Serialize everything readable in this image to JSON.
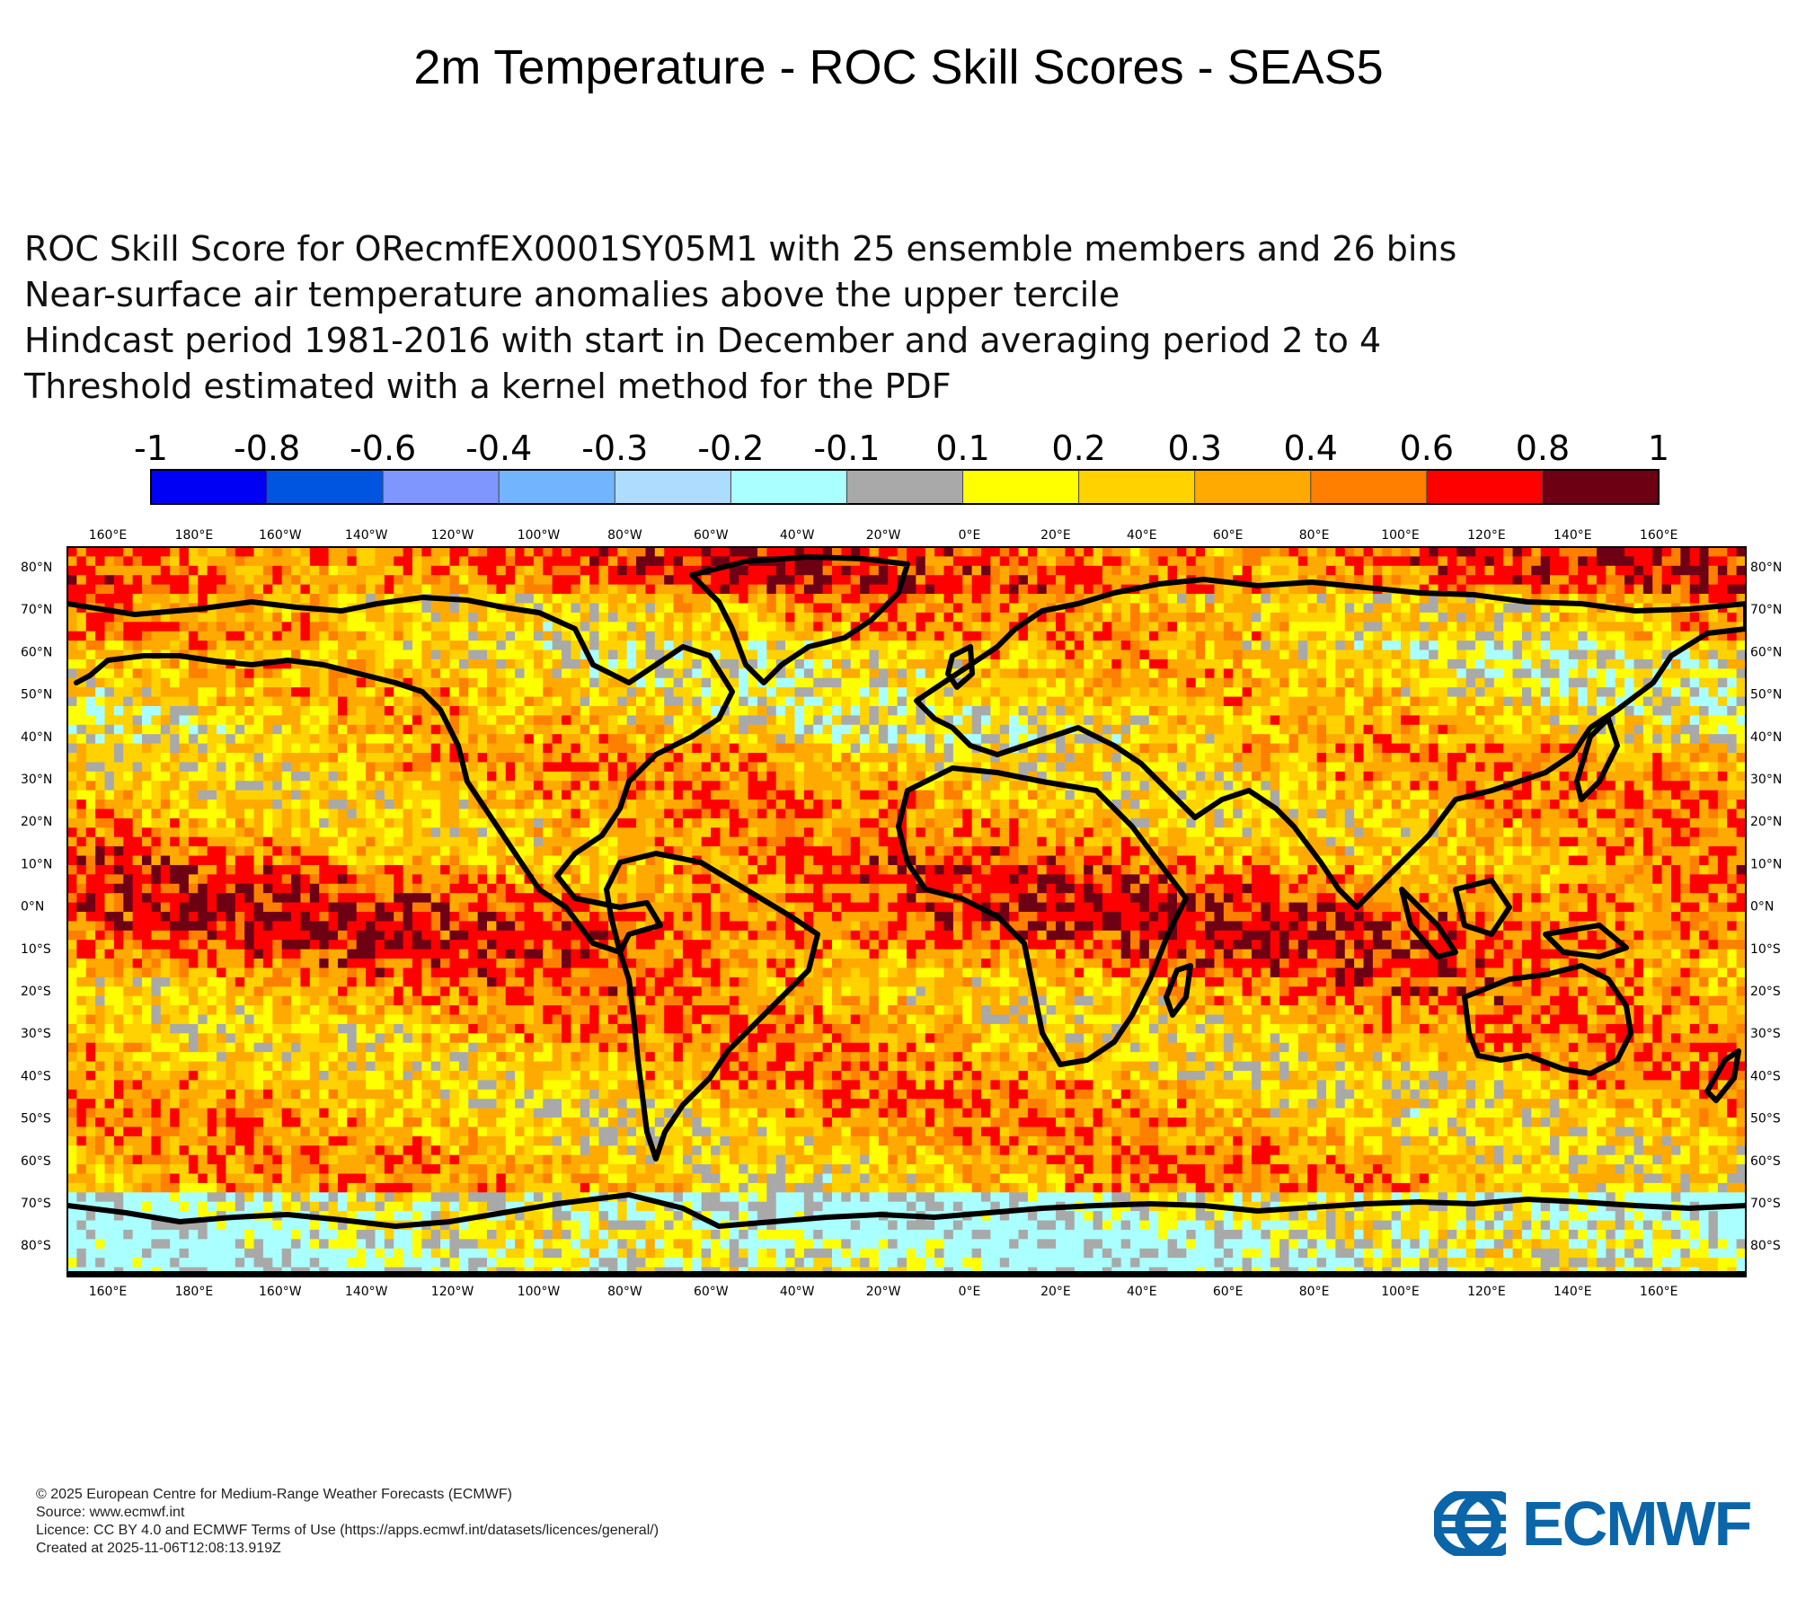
{
  "title": "2m Temperature - ROC Skill Scores - SEAS5",
  "subtitle_lines": [
    "ROC Skill Score for ORecmfEX0001SY05M1 with 25 ensemble members and 26 bins",
    "Near-surface air temperature anomalies above the upper tercile",
    "Hindcast period 1981-2016 with start in December and averaging period  2 to  4",
    "Threshold estimated with a kernel method for the PDF"
  ],
  "colorbar": {
    "labels": [
      "-1",
      "-0.8",
      "-0.6",
      "-0.4",
      "-0.3",
      "-0.2",
      "-0.1",
      "0.1",
      "0.2",
      "0.3",
      "0.4",
      "0.6",
      "0.8",
      "1"
    ],
    "colors": [
      "#0000f5",
      "#0055e0",
      "#7f95ff",
      "#73b4ff",
      "#aedcff",
      "#aaffff",
      "#a9a9a9",
      "#ffff00",
      "#ffd200",
      "#ffaa00",
      "#ff7f00",
      "#ff0000",
      "#6e0014"
    ]
  },
  "map": {
    "lon_ticks": [
      "160°E",
      "180°E",
      "160°W",
      "140°W",
      "120°W",
      "100°W",
      "80°W",
      "60°W",
      "40°W",
      "20°W",
      "0°E",
      "20°E",
      "40°E",
      "60°E",
      "80°E",
      "100°E",
      "120°E",
      "140°E",
      "160°E"
    ],
    "lat_ticks": [
      "80°N",
      "70°N",
      "60°N",
      "50°N",
      "40°N",
      "30°N",
      "20°N",
      "10°N",
      "0°N",
      "10°S",
      "20°S",
      "30°S",
      "40°S",
      "50°S",
      "60°S",
      "70°S",
      "80°S"
    ]
  },
  "footer": {
    "copyright": "© 2025 European Centre for Medium-Range Weather Forecasts (ECMWF)",
    "source": "Source: www.ecmwf.int",
    "licence": "Licence: CC BY 4.0 and ECMWF Terms of Use (https://apps.ecmwf.int/datasets/licences/general/)",
    "created": "Created at 2025-11-06T12:08:13.919Z"
  },
  "logo": {
    "text": "ECMWF",
    "color": "#0a65a9"
  }
}
